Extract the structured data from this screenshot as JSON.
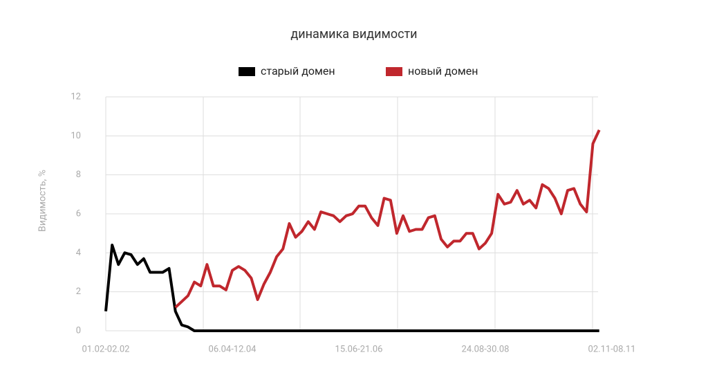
{
  "chart_data": {
    "type": "line",
    "title": "динамика видимости",
    "y_label": "Видимость, %",
    "categories": [
      "01.02-02.02",
      null,
      null,
      null,
      null,
      null,
      null,
      null,
      null,
      null,
      null,
      null,
      null,
      null,
      null,
      null,
      null,
      null,
      null,
      null,
      "06.04-12.04",
      null,
      null,
      null,
      null,
      null,
      null,
      null,
      null,
      null,
      null,
      null,
      null,
      null,
      null,
      null,
      null,
      null,
      null,
      null,
      "15.06-21.06",
      null,
      null,
      null,
      null,
      null,
      null,
      null,
      null,
      null,
      null,
      null,
      null,
      null,
      null,
      null,
      null,
      null,
      null,
      null,
      "24.08-30.08",
      null,
      null,
      null,
      null,
      null,
      null,
      null,
      null,
      null,
      null,
      null,
      null,
      null,
      null,
      null,
      null,
      null,
      null,
      null,
      "02.11-08.11"
    ],
    "series": [
      {
        "name": "старый домен",
        "color": "#000000",
        "values": [
          1.0,
          4.4,
          3.4,
          4.0,
          3.9,
          3.4,
          3.7,
          3.0,
          3.0,
          3.0,
          3.2,
          1.0,
          0.3,
          0.2,
          0,
          0,
          0,
          0,
          0,
          0,
          0,
          0,
          0,
          0,
          0,
          0,
          0,
          0,
          0,
          0,
          0,
          0,
          0,
          0,
          0,
          0,
          0,
          0,
          0,
          0,
          0,
          0,
          0,
          0,
          0,
          0,
          0,
          0,
          0,
          0,
          0,
          0,
          0,
          0,
          0,
          0,
          0,
          0,
          0,
          0,
          0,
          0,
          0,
          0,
          0,
          0,
          0,
          0,
          0,
          0,
          0,
          0,
          0,
          0,
          0,
          0,
          0,
          0,
          0,
          null,
          null
        ]
      },
      {
        "name": "новый домен",
        "color": "#c0272d",
        "values": [
          null,
          null,
          null,
          null,
          null,
          null,
          null,
          null,
          null,
          null,
          null,
          1.2,
          1.5,
          1.8,
          2.5,
          2.3,
          3.4,
          2.3,
          2.3,
          2.1,
          3.1,
          3.3,
          3.1,
          2.7,
          1.6,
          2.4,
          3.0,
          3.8,
          4.2,
          5.5,
          4.8,
          5.1,
          5.6,
          5.2,
          6.1,
          6.0,
          5.9,
          5.6,
          5.9,
          6.0,
          6.4,
          6.4,
          5.8,
          5.4,
          6.8,
          6.7,
          5.0,
          5.9,
          5.1,
          5.2,
          5.2,
          5.8,
          5.9,
          4.7,
          4.3,
          4.6,
          4.6,
          5.0,
          5.0,
          4.2,
          4.5,
          5.0,
          7.0,
          6.5,
          6.6,
          7.2,
          6.5,
          6.7,
          6.3,
          7.5,
          7.3,
          6.8,
          6.0,
          7.2,
          7.3,
          6.5,
          6.1,
          9.6,
          10.3,
          null,
          null
        ]
      }
    ],
    "ylim": [
      0,
      12
    ],
    "yticks": [
      0,
      2,
      4,
      6,
      8,
      10,
      12
    ],
    "grid": true,
    "legend": "top"
  }
}
